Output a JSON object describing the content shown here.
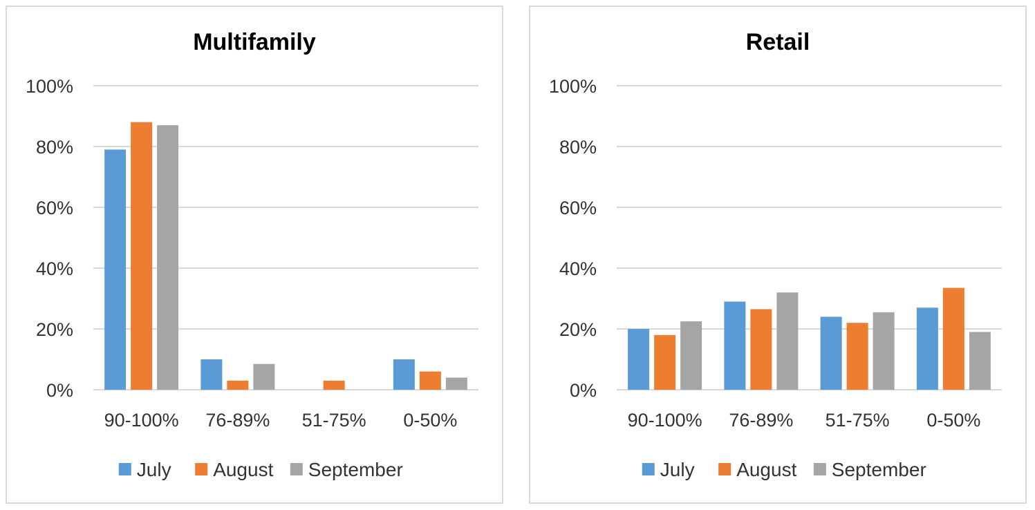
{
  "chart_data": [
    {
      "type": "bar",
      "title": "Multifamily",
      "categories": [
        "90-100%",
        "76-89%",
        "51-75%",
        "0-50%"
      ],
      "series": [
        {
          "name": "July",
          "color": "#5b9bd5",
          "values": [
            79,
            10,
            0,
            10
          ]
        },
        {
          "name": "August",
          "color": "#ed7d31",
          "values": [
            88,
            3,
            3,
            6
          ]
        },
        {
          "name": "September",
          "color": "#a5a5a5",
          "values": [
            87,
            8.5,
            0,
            4
          ]
        }
      ],
      "yticks": [
        "0%",
        "20%",
        "40%",
        "60%",
        "80%",
        "100%"
      ],
      "ylim": [
        0,
        100
      ],
      "xlabel": "",
      "ylabel": "",
      "grid": true,
      "legend": "bottom"
    },
    {
      "type": "bar",
      "title": "Retail",
      "categories": [
        "90-100%",
        "76-89%",
        "51-75%",
        "0-50%"
      ],
      "series": [
        {
          "name": "July",
          "color": "#5b9bd5",
          "values": [
            20,
            29,
            24,
            27
          ]
        },
        {
          "name": "August",
          "color": "#ed7d31",
          "values": [
            18,
            26.5,
            22,
            33.5
          ]
        },
        {
          "name": "September",
          "color": "#a5a5a5",
          "values": [
            22.5,
            32,
            25.5,
            19
          ]
        }
      ],
      "yticks": [
        "0%",
        "20%",
        "40%",
        "60%",
        "80%",
        "100%"
      ],
      "ylim": [
        0,
        100
      ],
      "xlabel": "",
      "ylabel": "",
      "grid": true,
      "legend": "bottom"
    }
  ]
}
